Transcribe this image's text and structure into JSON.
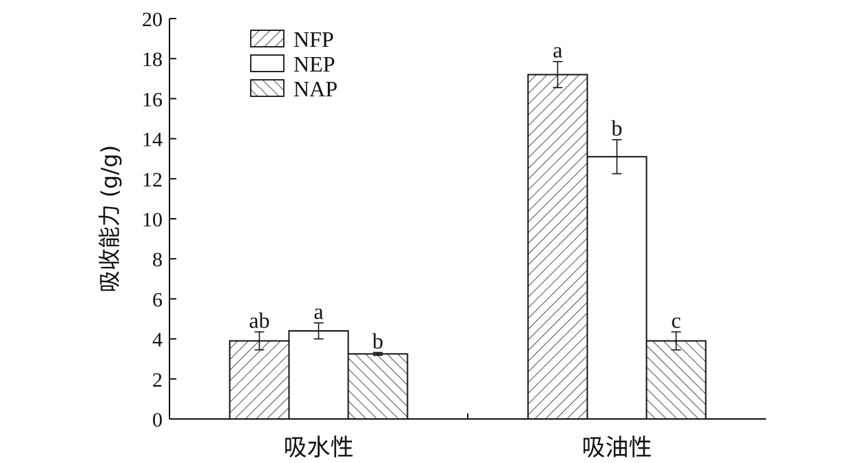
{
  "chart_data": {
    "type": "bar",
    "title": "",
    "xlabel": "",
    "ylabel": "吸收能力 (g/g)",
    "ylim": [
      0,
      20
    ],
    "yticks": [
      0,
      2,
      4,
      6,
      8,
      10,
      12,
      14,
      16,
      18,
      20
    ],
    "categories": [
      "吸水性",
      "吸油性"
    ],
    "legend_position": "top-left",
    "grid": false,
    "series": [
      {
        "name": "NFP",
        "pattern": "hatch-forward",
        "values": [
          3.9,
          17.2
        ],
        "errors": [
          0.45,
          0.65
        ],
        "labels": [
          "ab",
          "a"
        ]
      },
      {
        "name": "NEP",
        "pattern": "solid-white",
        "values": [
          4.4,
          13.1
        ],
        "errors": [
          0.4,
          0.85
        ],
        "labels": [
          "a",
          "b"
        ]
      },
      {
        "name": "NAP",
        "pattern": "hatch-backward",
        "values": [
          3.25,
          3.9
        ],
        "errors": [
          0.07,
          0.45
        ],
        "labels": [
          "b",
          "c"
        ]
      }
    ]
  }
}
